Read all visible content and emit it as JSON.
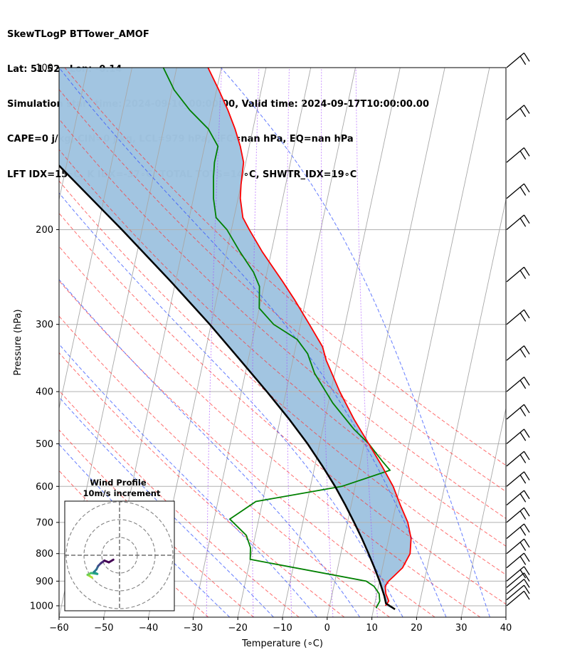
{
  "header": {
    "line1": "SkewTLogP BTTower_AMOF",
    "line2": "Lat: 51.52   Lon: -0.14",
    "line3": "Simulation start time: 2024-09-16_00:00:00, Valid time: 2024-09-17T10:00:00.00",
    "line4": "CAPE=0 j/kg, CIN=0 j/kg, LCL=979 hPa, LFC=nan hPa, EQ=nan hPa",
    "line5": "LFT IDX=15∘C, K IDX=-37∘C, TOTAL TOTS=14∘C, SHWTR_IDX=19∘C"
  },
  "chart_data": [
    {
      "type": "line",
      "chart_kind": "skew-T log-P",
      "xlabel": "Temperature (∘C)",
      "ylabel": "Pressure (hPa)",
      "xlim": [
        -60,
        40
      ],
      "ylim": [
        1050,
        100
      ],
      "y_scale": "log",
      "grid": true,
      "x_ticks": [
        -60,
        -50,
        -40,
        -30,
        -20,
        -10,
        0,
        10,
        20,
        30,
        40
      ],
      "y_ticks": [
        1000,
        900,
        800,
        700,
        600,
        500,
        400,
        300,
        200,
        100
      ],
      "x_tick_labels": [
        "−60",
        "−50",
        "−40",
        "−30",
        "−20",
        "−10",
        "0",
        "10",
        "20",
        "30",
        "40"
      ],
      "y_tick_labels": [
        "1000",
        "900",
        "800",
        "700",
        "600",
        "500",
        "400",
        "300",
        "200",
        "100"
      ],
      "series": [
        {
          "role": "temperature",
          "color": "#ff0000",
          "points": [
            [
              1000,
              12.5
            ],
            [
              980,
              13.0
            ],
            [
              950,
              12.0
            ],
            [
              920,
              11.5
            ],
            [
              900,
              12.0
            ],
            [
              880,
              13.0
            ],
            [
              850,
              14.5
            ],
            [
              800,
              15.5
            ],
            [
              750,
              15.0
            ],
            [
              700,
              13.5
            ],
            [
              650,
              11.0
            ],
            [
              600,
              8.5
            ],
            [
              550,
              5.0
            ],
            [
              500,
              1.0
            ],
            [
              450,
              -3.5
            ],
            [
              400,
              -8.0
            ],
            [
              350,
              -12.5
            ],
            [
              330,
              -14.0
            ],
            [
              300,
              -18.0
            ],
            [
              270,
              -22.5
            ],
            [
              250,
              -26.0
            ],
            [
              220,
              -32.0
            ],
            [
              200,
              -36.0
            ],
            [
              190,
              -38.0
            ],
            [
              175,
              -39.5
            ],
            [
              165,
              -40.0
            ],
            [
              150,
              -40.5
            ],
            [
              140,
              -42.0
            ],
            [
              130,
              -44.0
            ],
            [
              120,
              -46.5
            ],
            [
              110,
              -49.5
            ],
            [
              100,
              -53.0
            ]
          ]
        },
        {
          "role": "dewpoint",
          "color": "#008000",
          "points": [
            [
              1010,
              10.5
            ],
            [
              980,
              11.0
            ],
            [
              950,
              10.5
            ],
            [
              920,
              9.0
            ],
            [
              900,
              7.0
            ],
            [
              820,
              -20.0
            ],
            [
              780,
              -20.5
            ],
            [
              740,
              -22.0
            ],
            [
              690,
              -26.5
            ],
            [
              640,
              -21.5
            ],
            [
              600,
              -3.0
            ],
            [
              560,
              7.0
            ],
            [
              540,
              5.0
            ],
            [
              500,
              1.0
            ],
            [
              470,
              -3.0
            ],
            [
              420,
              -9.0
            ],
            [
              370,
              -14.5
            ],
            [
              340,
              -17.0
            ],
            [
              320,
              -20.0
            ],
            [
              300,
              -26.0
            ],
            [
              280,
              -30.0
            ],
            [
              255,
              -31.0
            ],
            [
              240,
              -33.0
            ],
            [
              220,
              -37.0
            ],
            [
              200,
              -41.0
            ],
            [
              190,
              -44.0
            ],
            [
              175,
              -45.5
            ],
            [
              160,
              -46.5
            ],
            [
              150,
              -47.0
            ],
            [
              145,
              -47.0
            ],
            [
              140,
              -47.0
            ],
            [
              130,
              -50.0
            ],
            [
              120,
              -55.0
            ],
            [
              110,
              -59.5
            ],
            [
              100,
              -63.0
            ]
          ]
        },
        {
          "role": "parcel",
          "color": "#000000",
          "points": [
            [
              1015,
              14.8
            ],
            [
              990,
              12.5
            ],
            [
              960,
              11.8
            ],
            [
              900,
              10.0
            ],
            [
              850,
              8.2
            ],
            [
              800,
              6.2
            ],
            [
              750,
              4.0
            ],
            [
              700,
              1.5
            ],
            [
              650,
              -1.3
            ],
            [
              600,
              -4.5
            ],
            [
              550,
              -8.3
            ],
            [
              500,
              -12.7
            ],
            [
              450,
              -18.0
            ],
            [
              400,
              -24.3
            ],
            [
              350,
              -31.7
            ],
            [
              300,
              -40.3
            ],
            [
              250,
              -51.0
            ],
            [
              200,
              -64.5
            ],
            [
              150,
              -82.5
            ],
            [
              100,
              -109.0
            ]
          ]
        }
      ],
      "dry_adiabats_theta_C": [
        -30,
        -20,
        -10,
        0,
        10,
        20,
        30,
        40,
        50,
        60,
        70,
        80,
        90
      ],
      "moist_adiabats_T_C": [
        -25,
        -15,
        -5,
        5,
        15,
        25,
        35
      ],
      "mixing_ratio_lines": true,
      "cape_cin_shading_color": "#a0c4e0",
      "wind_barbs_pressures": [
        1000,
        975,
        950,
        925,
        900,
        850,
        800,
        750,
        700,
        650,
        600,
        550,
        500,
        450,
        400,
        350,
        300,
        250,
        200,
        175,
        150,
        125,
        100
      ]
    },
    {
      "type": "scatter",
      "chart_kind": "hodograph",
      "title_line1": "Wind Profile",
      "title_line2": "10m/s increment",
      "range_ring_increment_ms": 10,
      "u_v_points": [
        [
          -15.5,
          -12.5,
          "#b5de2b"
        ],
        [
          -17.0,
          -11.5,
          "#a0da39"
        ],
        [
          -18.0,
          -11.0,
          "#6ece58"
        ],
        [
          -16.0,
          -10.0,
          "#35b779"
        ],
        [
          -12.5,
          -10.5,
          "#1f9e89"
        ],
        [
          -14.5,
          -9.5,
          "#26828e"
        ],
        [
          -13.0,
          -8.0,
          "#31688e"
        ],
        [
          -12.0,
          -6.0,
          "#3e4989"
        ],
        [
          -10.5,
          -4.5,
          "#482878"
        ],
        [
          -8.5,
          -3.0,
          "#440154"
        ],
        [
          -6.0,
          -4.0,
          "#440154"
        ],
        [
          -3.5,
          -2.5,
          "#440154"
        ]
      ]
    }
  ]
}
